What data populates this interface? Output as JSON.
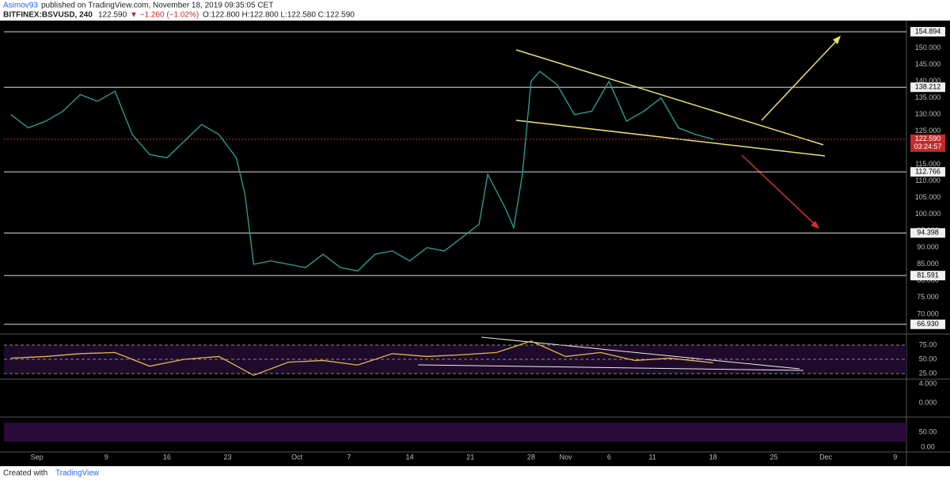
{
  "header": {
    "author": "Asimov93",
    "published": "published on TradingView.com, November 18, 2019 09:35:05 CET",
    "symbol": "BITFINEX:BSVUSD, 240",
    "last": "122.590",
    "change": "▼ −1.260 (−1.02%)",
    "ohlc": "O:122.800 H:122.800 L:122.580 C:122.590"
  },
  "footer": {
    "created": "Created with",
    "brand": "TradingView"
  },
  "chart_data": [
    {
      "type": "line",
      "x": [
        -2,
        0,
        2,
        4,
        6,
        8,
        10,
        12,
        14,
        16,
        18,
        20,
        22,
        24,
        25,
        26,
        28,
        30,
        32,
        34,
        36,
        38,
        40,
        42,
        44,
        46,
        48,
        50,
        52,
        53,
        55,
        56,
        57,
        58,
        59,
        61,
        63,
        65,
        67,
        69,
        71,
        73,
        75,
        77,
        79
      ],
      "series": [
        {
          "name": "BSVUSD",
          "color": "#26a69a",
          "values": [
            130,
            126,
            128,
            131,
            136,
            134,
            137,
            124,
            118,
            117,
            122,
            127,
            124,
            117,
            106,
            85,
            86,
            85,
            84,
            88,
            84,
            83,
            88,
            89,
            86,
            90,
            89,
            93,
            97,
            112,
            102,
            96,
            112,
            140,
            143,
            139,
            130,
            131,
            140,
            128,
            131,
            135,
            126,
            124,
            122.59
          ]
        }
      ],
      "xlim": [
        -2.8,
        101.3
      ],
      "xticks": [
        {
          "value": 1,
          "label": "Sep"
        },
        {
          "value": 9,
          "label": "9"
        },
        {
          "value": 16,
          "label": "16"
        },
        {
          "value": 23,
          "label": "23"
        },
        {
          "value": 31,
          "label": "Oct"
        },
        {
          "value": 37,
          "label": "7"
        },
        {
          "value": 44,
          "label": "14"
        },
        {
          "value": 51,
          "label": "21"
        },
        {
          "value": 58,
          "label": "28"
        },
        {
          "value": 62,
          "label": "Nov"
        },
        {
          "value": 67,
          "label": "6"
        },
        {
          "value": 72,
          "label": "11"
        },
        {
          "value": 79,
          "label": "18"
        },
        {
          "value": 86,
          "label": "25"
        },
        {
          "value": 92,
          "label": "Dec"
        },
        {
          "value": 100,
          "label": "9"
        }
      ],
      "ylim": [
        64.5,
        157.3
      ],
      "yticks": [
        {
          "value": 70,
          "label": "70.000"
        },
        {
          "value": 75,
          "label": "75.000"
        },
        {
          "value": 80,
          "label": "80.000"
        },
        {
          "value": 85,
          "label": "85.000"
        },
        {
          "value": 90,
          "label": "90.000"
        },
        {
          "value": 95,
          "label": "95.000"
        },
        {
          "value": 100,
          "label": "100.000"
        },
        {
          "value": 105,
          "label": "105.000"
        },
        {
          "value": 110,
          "label": "110.000"
        },
        {
          "value": 115,
          "label": "115.000"
        },
        {
          "value": 120,
          "label": "120.000"
        },
        {
          "value": 125,
          "label": "125.000"
        },
        {
          "value": 130,
          "label": "130.000"
        },
        {
          "value": 135,
          "label": "135.000"
        },
        {
          "value": 140,
          "label": "140.000"
        },
        {
          "value": 145,
          "label": "145.000"
        },
        {
          "value": 150,
          "label": "150.000"
        }
      ],
      "levels": [
        154.894,
        138.212,
        112.766,
        94.398,
        81.591,
        {
          "value": 66.93,
          "label": "66.930"
        }
      ],
      "current": {
        "value": 122.59,
        "label": "122.590"
      },
      "countdown": "03:24:57",
      "grid": false
    },
    {
      "type": "line",
      "x": [
        -2,
        2,
        6,
        10,
        14,
        18,
        22,
        26,
        30,
        34,
        38,
        42,
        46,
        50,
        54,
        58,
        62,
        66,
        70,
        74,
        79
      ],
      "series": [
        {
          "name": "RSI",
          "color": "#e0b84a",
          "values": [
            52,
            55,
            60,
            62,
            38,
            50,
            55,
            22,
            45,
            48,
            40,
            60,
            55,
            58,
            62,
            82,
            55,
            62,
            48,
            52,
            44
          ]
        }
      ],
      "ylim": [
        16.7,
        90.3
      ],
      "yticks": [
        {
          "value": 25,
          "label": "25.00"
        },
        {
          "value": 50,
          "label": "50.00"
        },
        {
          "value": 75,
          "label": "75.00"
        }
      ],
      "grid": true
    },
    {
      "type": "line",
      "series": [],
      "ylim": [
        -2.67,
        4.83
      ],
      "yticks": [
        {
          "value": 0,
          "label": "0.000"
        },
        {
          "value": 4,
          "label": "4.000"
        }
      ],
      "grid": false
    },
    {
      "type": "line",
      "series": [],
      "ylim": [
        -13,
        92
      ],
      "yticks": [
        {
          "value": 0,
          "label": "0.00"
        },
        {
          "value": 50,
          "label": "50.00"
        }
      ],
      "grid": false
    }
  ]
}
